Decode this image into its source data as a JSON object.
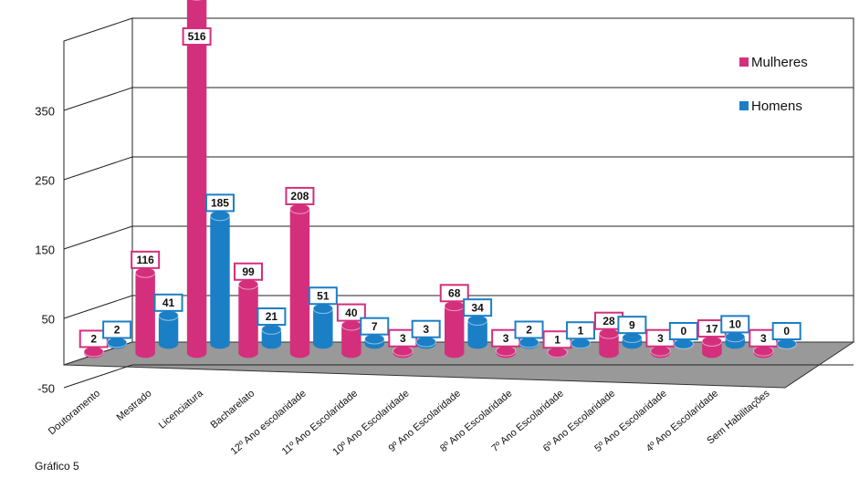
{
  "chart_data": {
    "type": "bar3d",
    "caption": "Gráfico 5",
    "categories": [
      "Doutoramento",
      "Mestrado",
      "Licenciatura",
      "Bacharelato",
      "12º Ano escolaridade",
      "11º Ano Escolaridade",
      "10º Ano Escolaridade",
      "9º Ano Escolaridade",
      "8º Ano Escolaridade",
      "7º Ano Escolaridade",
      "6º Ano Escolaridade",
      "5º Ano Escolaridade",
      "4º Ano Escolaridade",
      "Sem Habilitações"
    ],
    "series": [
      {
        "name": "Mulheres",
        "color": "#d42f7c",
        "values": [
          2,
          116,
          516,
          99,
          208,
          40,
          3,
          68,
          3,
          1,
          28,
          3,
          17,
          3
        ]
      },
      {
        "name": "Homens",
        "color": "#1b7fc6",
        "values": [
          2,
          41,
          185,
          21,
          51,
          7,
          3,
          34,
          2,
          1,
          9,
          0,
          10,
          0
        ]
      }
    ],
    "ylim": [
      -50,
      450
    ],
    "yticks": [
      -50,
      50,
      150,
      250,
      350
    ],
    "grid": true,
    "legend": "upper right"
  }
}
